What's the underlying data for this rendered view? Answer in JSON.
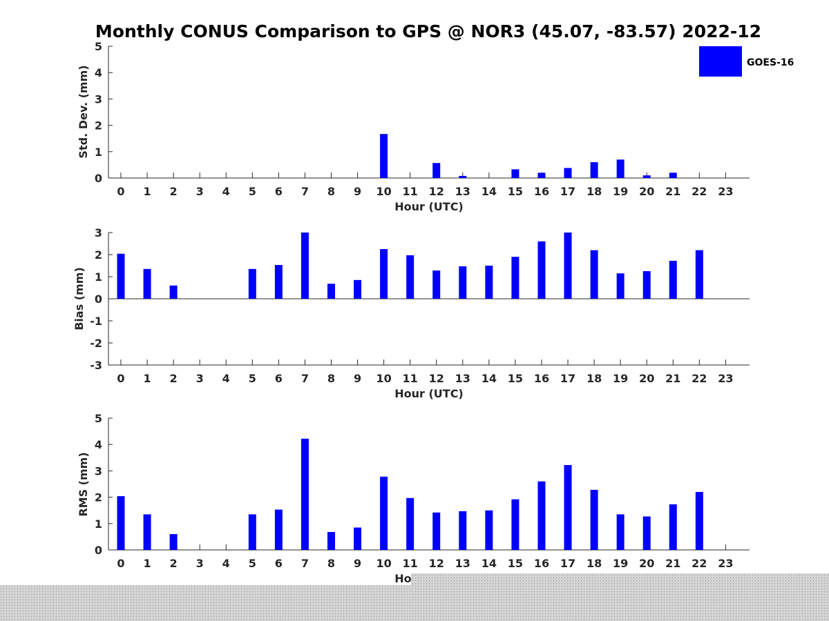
{
  "chart_data": {
    "title": "Monthly CONUS Comparison to GPS @ NOR3 (45.07, -83.57) 2022-12",
    "legend": {
      "label": "GOES-16",
      "color": "#0000ff",
      "placement": "top-right"
    },
    "panels": [
      {
        "type": "bar",
        "ylabel": "Std. Dev. (mm)",
        "xlabel": "Hour (UTC)",
        "ylim": [
          0,
          5
        ],
        "yticks": [
          0,
          1,
          2,
          3,
          4,
          5
        ],
        "categories": [
          0,
          1,
          2,
          3,
          4,
          5,
          6,
          7,
          8,
          9,
          10,
          11,
          12,
          13,
          14,
          15,
          16,
          17,
          18,
          19,
          20,
          21,
          22,
          23
        ],
        "values": [
          null,
          null,
          null,
          null,
          null,
          null,
          null,
          null,
          null,
          null,
          1.67,
          null,
          0.57,
          0.08,
          null,
          0.33,
          0.2,
          0.38,
          0.6,
          0.7,
          0.1,
          0.2,
          null,
          null
        ]
      },
      {
        "type": "bar",
        "ylabel": "Bias (mm)",
        "xlabel": "Hour (UTC)",
        "ylim": [
          -3,
          3
        ],
        "yticks": [
          -3,
          -2,
          -1,
          0,
          1,
          2,
          3
        ],
        "categories": [
          0,
          1,
          2,
          3,
          4,
          5,
          6,
          7,
          8,
          9,
          10,
          11,
          12,
          13,
          14,
          15,
          16,
          17,
          18,
          19,
          20,
          21,
          22,
          23
        ],
        "values": [
          2.04,
          1.35,
          0.6,
          null,
          null,
          1.35,
          1.53,
          3.0,
          0.68,
          0.85,
          2.25,
          1.97,
          1.28,
          1.47,
          1.5,
          1.9,
          2.6,
          3.0,
          2.2,
          1.15,
          1.25,
          1.72,
          2.2,
          null
        ]
      },
      {
        "type": "bar",
        "ylabel": "RMS (mm)",
        "xlabel": "Hour (UTC)",
        "ylim": [
          0,
          5
        ],
        "yticks": [
          0,
          1,
          2,
          3,
          4,
          5
        ],
        "categories": [
          0,
          1,
          2,
          3,
          4,
          5,
          6,
          7,
          8,
          9,
          10,
          11,
          12,
          13,
          14,
          15,
          16,
          17,
          18,
          19,
          20,
          21,
          22,
          23
        ],
        "values": [
          2.04,
          1.35,
          0.6,
          null,
          null,
          1.35,
          1.53,
          4.22,
          0.68,
          0.85,
          2.78,
          1.97,
          1.42,
          1.47,
          1.5,
          1.92,
          2.6,
          3.22,
          2.28,
          1.35,
          1.27,
          1.73,
          2.2,
          null
        ]
      }
    ]
  }
}
